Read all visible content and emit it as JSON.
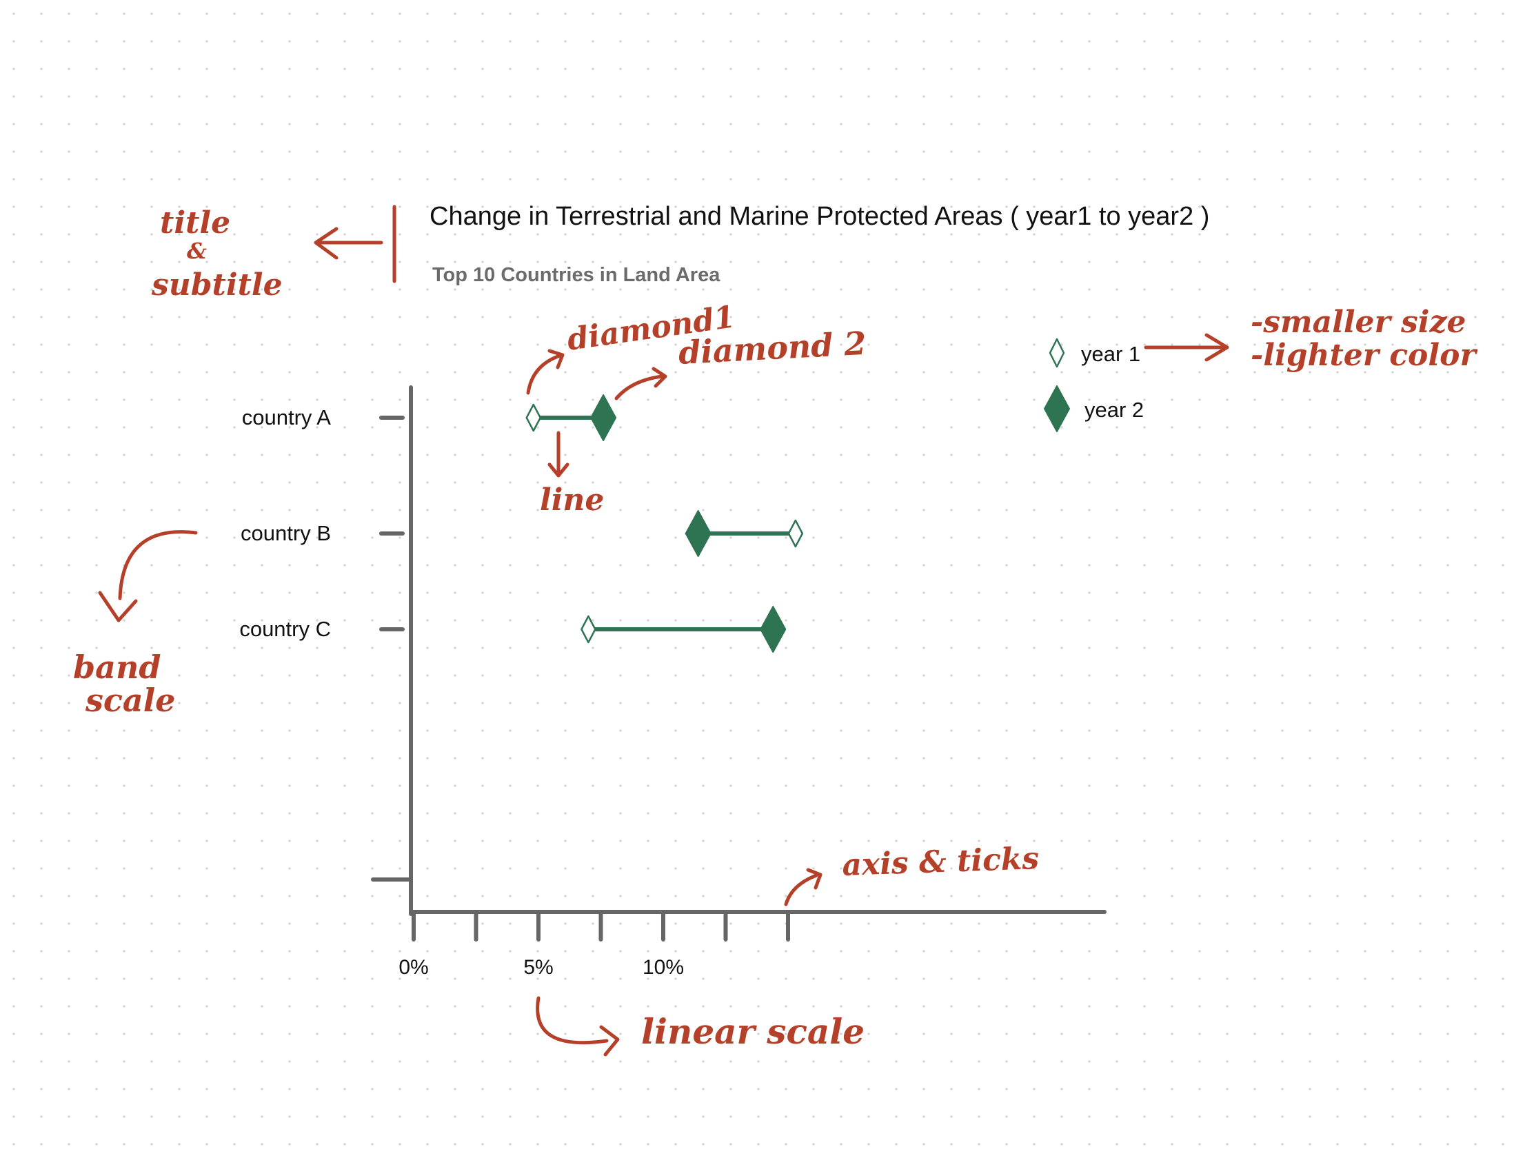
{
  "chart_data": {
    "type": "dumbbell",
    "title": "Change in Terrestrial and Marine Protected Areas ( year1 to year2 )",
    "subtitle": "Top 10 Countries in Land Area",
    "categories": [
      "country A",
      "country B",
      "country C"
    ],
    "series": [
      {
        "name": "year 1",
        "values": [
          4.8,
          15.3,
          7.0
        ]
      },
      {
        "name": "year 2",
        "values": [
          7.6,
          11.4,
          14.4
        ]
      }
    ],
    "x_ticks": [
      0,
      2.5,
      5,
      7.5,
      10,
      12.5,
      15
    ],
    "x_tick_labels": [
      "0%",
      "",
      "5%",
      "",
      "10%",
      "",
      ""
    ],
    "xlim": [
      0,
      28
    ],
    "legend": "top-right",
    "grid": false
  },
  "colors": {
    "marker_dark": "#2e7352",
    "marker_light": "#ffffff",
    "connector": "#2e7352",
    "axis": "#666666",
    "annotation": "#b5402a",
    "page_dots": "#d6d6d6"
  },
  "annotations": {
    "title_subtitle_1": "title",
    "title_subtitle_2": "&",
    "title_subtitle_3": "subtitle",
    "diamond1": "diamond1",
    "diamond2": "diamond 2",
    "line": "line",
    "band_scale_1": "band",
    "band_scale_2": "scale",
    "legend_note_1": "-smaller size",
    "legend_note_2": "-lighter color",
    "axis_ticks": "axis & ticks",
    "linear_scale": "linear scale"
  }
}
